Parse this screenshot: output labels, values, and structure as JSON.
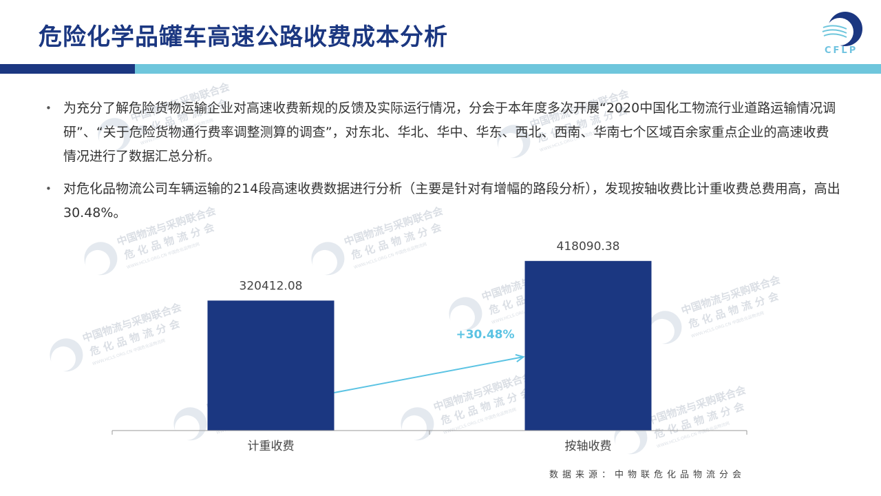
{
  "header": {
    "title": "危险化学品罐车高速公路收费成本分析",
    "logo_text": "CFLP"
  },
  "bullets": [
    "为充分了解危险货物运输企业对高速收费新规的反馈及实际运行情况，分会于本年度多次开展“2020中国化工物流行业道路运输情况调研”、“关于危险货物通行费率调整测算的调查”，对东北、华北、华中、华东、西北、西南、华南七个区域百余家重点企业的高速收费情况进行了数据汇总分析。",
    "对危化品物流公司车辆运输的214段高速收费数据进行分析（主要是针对有增幅的路段分析），发现按轴收费比计重收费总费用高，高出30.48%。"
  ],
  "watermark": {
    "line1": "中国物流与采购联合会",
    "line2": "危 化 品 物 流 分 会",
    "line3": "WWW.HCLS.ORG.CN 中国危化品物流网"
  },
  "chart_data": {
    "type": "bar",
    "categories": [
      "计重收费",
      "按轴收费"
    ],
    "values": [
      320412.08,
      418090.38
    ],
    "value_labels": [
      "320412.08",
      "418090.38"
    ],
    "ylim": [
      0,
      450000
    ],
    "bar_color": "#1b3781",
    "annotation": {
      "text": "+30.48%",
      "color": "#5bc3e3"
    },
    "title": "",
    "xlabel": "",
    "ylabel": ""
  },
  "source": "数据来源：中物联危化品物流分会"
}
